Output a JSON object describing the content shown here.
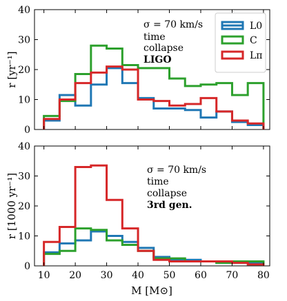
{
  "chart_data": [
    {
      "type": "histogram",
      "annotation": [
        "σ = 70 km/s",
        "time",
        "collapse"
      ],
      "annotation_bold": "LIGO",
      "ylabel": "r  [yr⁻¹]",
      "ylim": [
        0,
        40
      ],
      "yticks": [
        "0",
        "10",
        "20",
        "30",
        "40"
      ],
      "bins": [
        10,
        15,
        20,
        25,
        30,
        35,
        40,
        45,
        50,
        55,
        60,
        65,
        70,
        75,
        80
      ],
      "series": [
        {
          "name": "L0",
          "color": "#1f77b4",
          "values": [
            3,
            11.5,
            8,
            15,
            20.5,
            15.5,
            10.5,
            7,
            7,
            6.5,
            4,
            6,
            2.5,
            1.5
          ]
        },
        {
          "name": "C",
          "color": "#2ca02c",
          "values": [
            4.5,
            9.5,
            18.5,
            28,
            27,
            21.5,
            20.5,
            20.5,
            17,
            14.5,
            15,
            15.5,
            11.5,
            15.5
          ]
        },
        {
          "name": "Lπ",
          "color": "#d62728",
          "values": [
            3.5,
            10,
            15.5,
            19,
            21,
            20,
            10,
            9.5,
            8,
            8.5,
            10.5,
            6,
            3,
            2
          ]
        }
      ],
      "legend": [
        "L0",
        "C",
        "Lπ"
      ],
      "legend_position": "top-right"
    },
    {
      "type": "histogram",
      "annotation": [
        "σ = 70 km/s",
        "time",
        "collapse"
      ],
      "annotation_bold": "3rd gen.",
      "ylabel": "r  [1000  yr⁻¹]",
      "xlabel": "M  [M⊙]",
      "ylim": [
        0,
        40
      ],
      "yticks": [
        "0",
        "10",
        "20",
        "30",
        "40"
      ],
      "xticks": [
        "10",
        "20",
        "30",
        "40",
        "50",
        "60",
        "70",
        "80"
      ],
      "bins": [
        10,
        15,
        20,
        25,
        30,
        35,
        40,
        45,
        50,
        55,
        60,
        65,
        70,
        75,
        80
      ],
      "series": [
        {
          "name": "L0",
          "color": "#1f77b4",
          "values": [
            4.5,
            7.5,
            8.5,
            11.5,
            10,
            8,
            6,
            3,
            2,
            2,
            1.5,
            1,
            1,
            1
          ]
        },
        {
          "name": "C",
          "color": "#2ca02c",
          "values": [
            4,
            5,
            12.5,
            12,
            8.5,
            7,
            5,
            2.5,
            2.5,
            1.5,
            1.5,
            1,
            1.5,
            1.5
          ]
        },
        {
          "name": "Lπ",
          "color": "#d62728",
          "values": [
            8,
            13,
            33,
            33.5,
            22,
            12.5,
            5,
            2,
            1.5,
            1.5,
            1.5,
            1.5,
            1,
            0.5
          ]
        }
      ]
    }
  ]
}
